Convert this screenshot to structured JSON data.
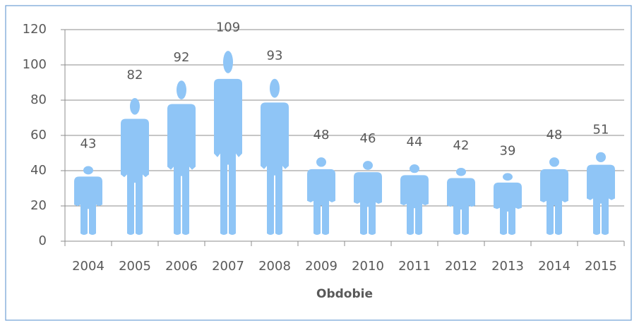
{
  "chart_data": {
    "type": "bar",
    "x_label": "Obdobie",
    "categories": [
      "2004",
      "2005",
      "2006",
      "2007",
      "2008",
      "2009",
      "2010",
      "2011",
      "2012",
      "2013",
      "2014",
      "2015"
    ],
    "values": [
      43,
      82,
      92,
      109,
      93,
      48,
      46,
      44,
      42,
      39,
      48,
      51
    ],
    "color": "#8fc5f6",
    "ylim": [
      0,
      120
    ],
    "yticks": [
      0,
      20,
      40,
      60,
      80,
      100,
      120
    ],
    "grid": true
  }
}
